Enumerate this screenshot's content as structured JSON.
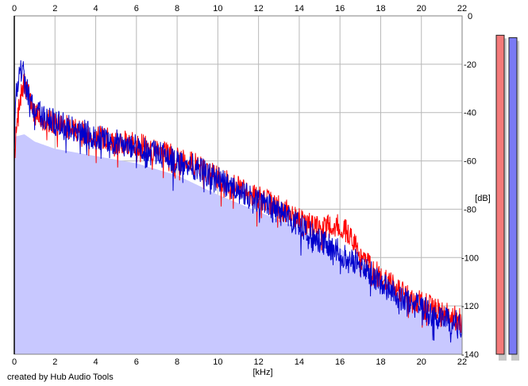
{
  "chart_data": {
    "type": "area",
    "title": "",
    "xlabel": "[kHz]",
    "ylabel": "[dB]",
    "xlim": [
      0,
      22
    ],
    "ylim": [
      -140,
      0
    ],
    "x_ticks": [
      0,
      2,
      4,
      6,
      8,
      10,
      12,
      14,
      16,
      18,
      20,
      22
    ],
    "y_ticks": [
      0,
      -20,
      -40,
      -60,
      -80,
      -100,
      -120,
      -140
    ],
    "grid": true,
    "series": [
      {
        "color": "#ff0000",
        "x": [
          0,
          0.25,
          0.5,
          1,
          1.5,
          2,
          3,
          4,
          5,
          6,
          7,
          8,
          9,
          10,
          11,
          12,
          13,
          14,
          15,
          15.5,
          16,
          16.5,
          17,
          18,
          19,
          20,
          21,
          22
        ],
        "values": [
          -58,
          -35,
          -28,
          -40,
          -43,
          -44,
          -47,
          -50,
          -52,
          -53,
          -56,
          -58,
          -62,
          -67,
          -71,
          -75,
          -79,
          -84,
          -88,
          -87,
          -87,
          -90,
          -100,
          -108,
          -114,
          -119,
          -122,
          -126
        ]
      },
      {
        "color": "#0000cc",
        "x": [
          0,
          0.1,
          0.2,
          0.3,
          0.4,
          0.5,
          1,
          1.5,
          2,
          3,
          4,
          5,
          6,
          7,
          8,
          9,
          10,
          11,
          12,
          13,
          14,
          15,
          16,
          17,
          18,
          19,
          20,
          21,
          22
        ],
        "values": [
          -45,
          -33,
          -26,
          -23,
          -21,
          -28,
          -38,
          -42,
          -44,
          -47,
          -50,
          -52,
          -54,
          -57,
          -60,
          -63,
          -68,
          -72,
          -77,
          -81,
          -87,
          -93,
          -98,
          -103,
          -110,
          -117,
          -121,
          -125,
          -128
        ]
      },
      {
        "color": "#c8c8ff",
        "x": [
          0,
          0.5,
          1,
          2,
          4,
          6,
          8,
          10,
          12,
          14,
          16,
          18,
          20,
          22
        ],
        "values": [
          -50,
          -49,
          -52,
          -55,
          -58,
          -61,
          -66,
          -74,
          -81,
          -88,
          -96,
          -111,
          -122,
          -128
        ]
      }
    ],
    "meters": [
      {
        "color": "#f47a7a",
        "value": -8
      },
      {
        "color": "#7a7af4",
        "value": -9
      }
    ]
  },
  "footer": {
    "credit": "created by Hub Audio Tools"
  }
}
